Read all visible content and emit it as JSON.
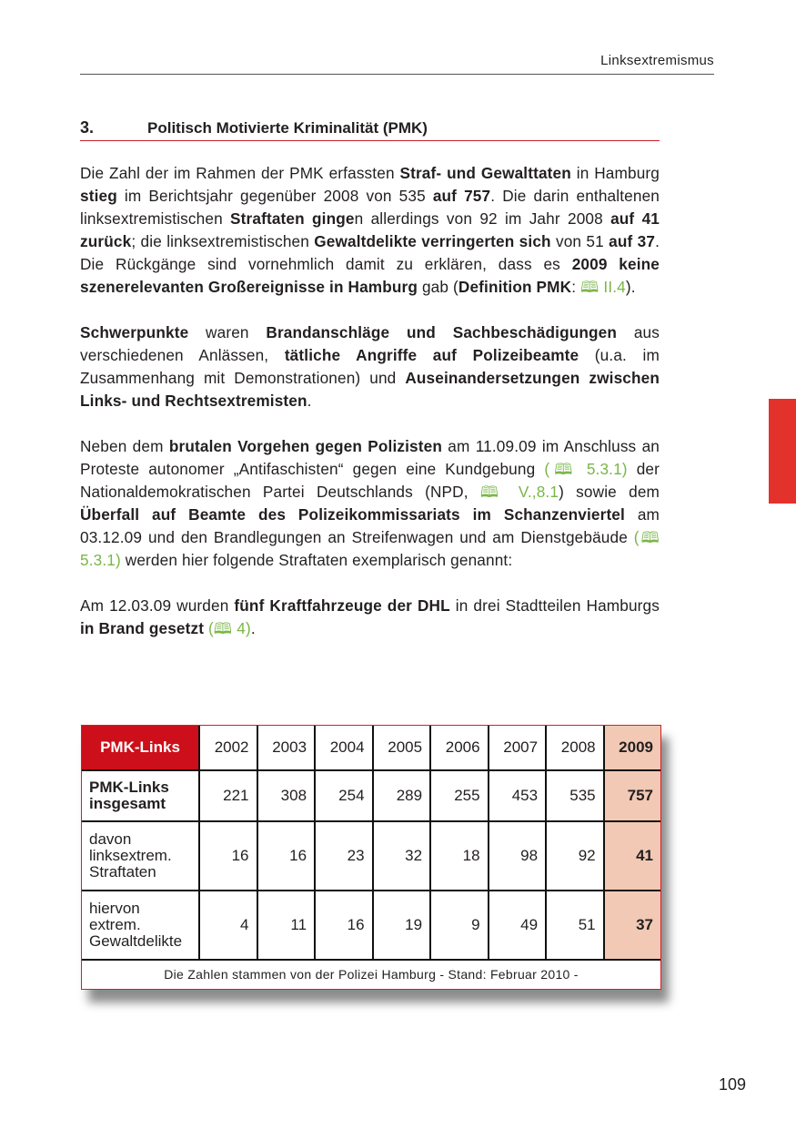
{
  "running_head": "Linksextremismus",
  "section": {
    "number": "3.",
    "title": "Politisch Motivierte Kriminalität (PMK)"
  },
  "paragraphs": [
    [
      {
        "t": "Die Zahl der im Rahmen der PMK erfassten "
      },
      {
        "t": "Straf- und Gewalttaten",
        "b": true
      },
      {
        "t": " in Hamburg "
      },
      {
        "t": "stieg",
        "b": true
      },
      {
        "t": " im Berichtsjahr gegenüber 2008 von 535 "
      },
      {
        "t": "auf 757",
        "b": true
      },
      {
        "t": ". Die darin enthaltenen linksextremistischen "
      },
      {
        "t": "Straftaten ginge",
        "b": true
      },
      {
        "t": "n allerdings von 92 im Jahr 2008 "
      },
      {
        "t": "auf 41 zurück",
        "b": true
      },
      {
        "t": "; die linksextremistischen "
      },
      {
        "t": "Gewaltdelikte verringerten sich",
        "b": true
      },
      {
        "t": " von 51 "
      },
      {
        "t": "auf 37",
        "b": true
      },
      {
        "t": ". Die Rückgänge sind vornehmlich damit zu erklären, dass es "
      },
      {
        "t": "2009 keine szenerelevanten Großereignisse in Hamburg",
        "b": true
      },
      {
        "t": " gab ("
      },
      {
        "t": "Definition PMK",
        "b": true
      },
      {
        "t": ": "
      },
      {
        "t": "🕮 II.4",
        "ref": true
      },
      {
        "t": ")."
      }
    ],
    [
      {
        "t": "Schwerpunkte",
        "b": true
      },
      {
        "t": " waren "
      },
      {
        "t": "Brandanschläge und Sachbeschädigungen",
        "b": true
      },
      {
        "t": " aus verschiedenen Anlässen, "
      },
      {
        "t": "tätliche Angriffe auf Polizeibeamte",
        "b": true
      },
      {
        "t": " (u.a. im Zusammenhang mit Demonstrationen) und "
      },
      {
        "t": "Auseinandersetzungen zwischen Links- und Rechtsextremisten",
        "b": true
      },
      {
        "t": "."
      }
    ],
    [
      {
        "t": "Neben dem "
      },
      {
        "t": "brutalen Vorgehen gegen Polizisten",
        "b": true
      },
      {
        "t": " am 11.09.09 im Anschluss an Proteste autonomer „Antifaschisten“ gegen eine Kundgebung "
      },
      {
        "t": "(🕮 5.3.1)",
        "ref": true
      },
      {
        "t": " der Nationaldemokratischen Partei Deutschlands (NPD, "
      },
      {
        "t": "🕮 V.,8.1",
        "ref": true
      },
      {
        "t": ") sowie dem "
      },
      {
        "t": "Überfall auf Beamte des Polizeikommissariats im Schanzenviertel",
        "b": true
      },
      {
        "t": " am 03.12.09 und den Brandlegungen an Streifenwagen und am Dienstgebäude "
      },
      {
        "t": "(🕮 5.3.1)",
        "ref": true
      },
      {
        "t": " werden hier folgende Straftaten exemplarisch genannt:"
      }
    ],
    [
      {
        "t": "Am 12.03.09 wurden "
      },
      {
        "t": "fünf Kraftfahrzeuge der DHL",
        "b": true
      },
      {
        "t": " in drei Stadtteilen Hamburgs "
      },
      {
        "t": "in Brand gesetzt",
        "b": true
      },
      {
        "t": " "
      },
      {
        "t": "(🕮 4)",
        "ref": true
      },
      {
        "t": "."
      }
    ]
  ],
  "table": {
    "corner_label": "PMK-Links",
    "years": [
      "2002",
      "2003",
      "2004",
      "2005",
      "2006",
      "2007",
      "2008",
      "2009"
    ],
    "rows": [
      {
        "label": "PMK-Links insgesamt",
        "values": [
          "221",
          "308",
          "254",
          "289",
          "255",
          "453",
          "535",
          "757"
        ]
      },
      {
        "label": "davon linksextrem. Straftaten",
        "values": [
          "16",
          "16",
          "23",
          "32",
          "18",
          "98",
          "92",
          "41"
        ]
      },
      {
        "label": "hiervon extrem. Gewaltdelikte",
        "values": [
          "4",
          "11",
          "16",
          "19",
          "9",
          "49",
          "51",
          "37"
        ]
      }
    ],
    "source": "Die Zahlen stammen von der Polizei Hamburg - Stand: Februar 2010 -"
  },
  "colors": {
    "accent_red": "#e3312b",
    "header_red": "#cc0f1a",
    "highlight": "#f2c9b5",
    "reference_green": "#7ab648"
  },
  "page_number": "109"
}
